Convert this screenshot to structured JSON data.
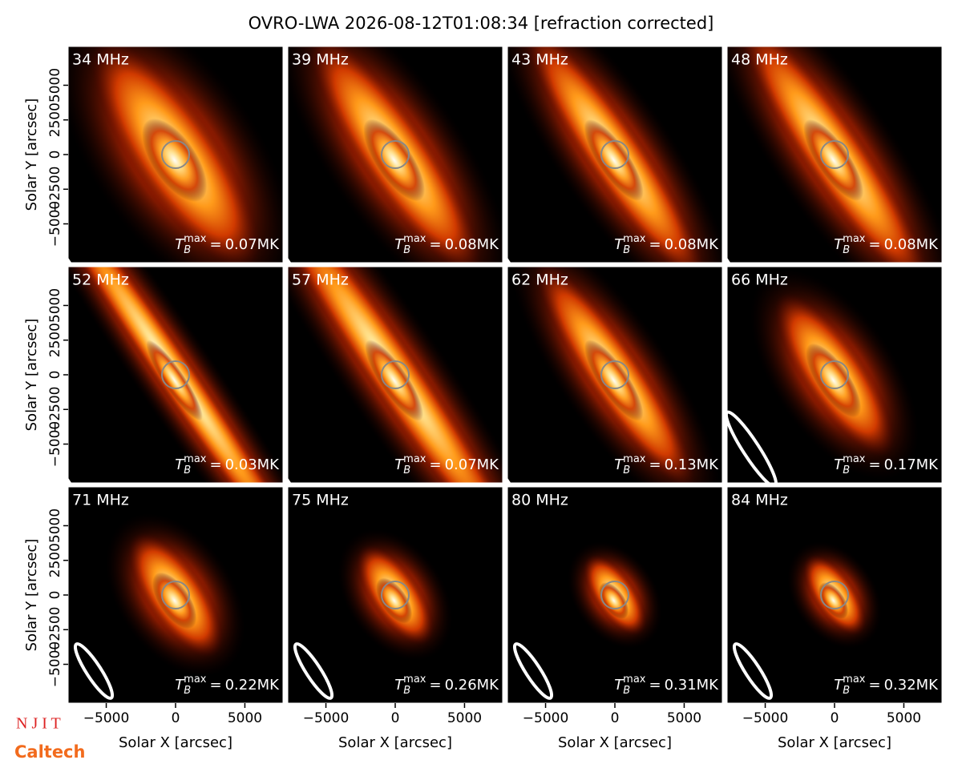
{
  "title": "OVRO-LWA 2026-08-12T01:08:34 [refraction corrected]",
  "axes": {
    "xlabel": "Solar X [arcsec]",
    "ylabel": "Solar Y [arcsec]",
    "xlim": [
      -7750,
      7750
    ],
    "ylim": [
      -7800,
      7800
    ],
    "xticks": [
      {
        "value": -5000,
        "label": "−5000"
      },
      0,
      5000
    ],
    "yticks": [
      {
        "value": -5000,
        "label": "−5000"
      },
      {
        "value": -2500,
        "label": "−2500"
      },
      0,
      2500,
      5000
    ]
  },
  "annotation": {
    "symbol": "T",
    "sub": "B",
    "sup": "max",
    "relation": "=",
    "unit": "MK"
  },
  "logos": [
    "N J I T",
    "Caltech"
  ],
  "chart_data": [
    {
      "type": "image",
      "label": "34 MHz",
      "tb_max": 0.07
    },
    {
      "type": "image",
      "label": "39 MHz",
      "tb_max": 0.08
    },
    {
      "type": "image",
      "label": "43 MHz",
      "tb_max": 0.08
    },
    {
      "type": "image",
      "label": "48 MHz",
      "tb_max": 0.08
    },
    {
      "type": "image",
      "label": "52 MHz",
      "tb_max": 0.03
    },
    {
      "type": "image",
      "label": "57 MHz",
      "tb_max": 0.07
    },
    {
      "type": "image",
      "label": "62 MHz",
      "tb_max": 0.13
    },
    {
      "type": "image",
      "label": "66 MHz",
      "tb_max": 0.17
    },
    {
      "type": "image",
      "label": "71 MHz",
      "tb_max": 0.22
    },
    {
      "type": "image",
      "label": "75 MHz",
      "tb_max": 0.26
    },
    {
      "type": "image",
      "label": "80 MHz",
      "tb_max": 0.31
    },
    {
      "type": "image",
      "label": "84 MHz",
      "tb_max": 0.32
    }
  ]
}
